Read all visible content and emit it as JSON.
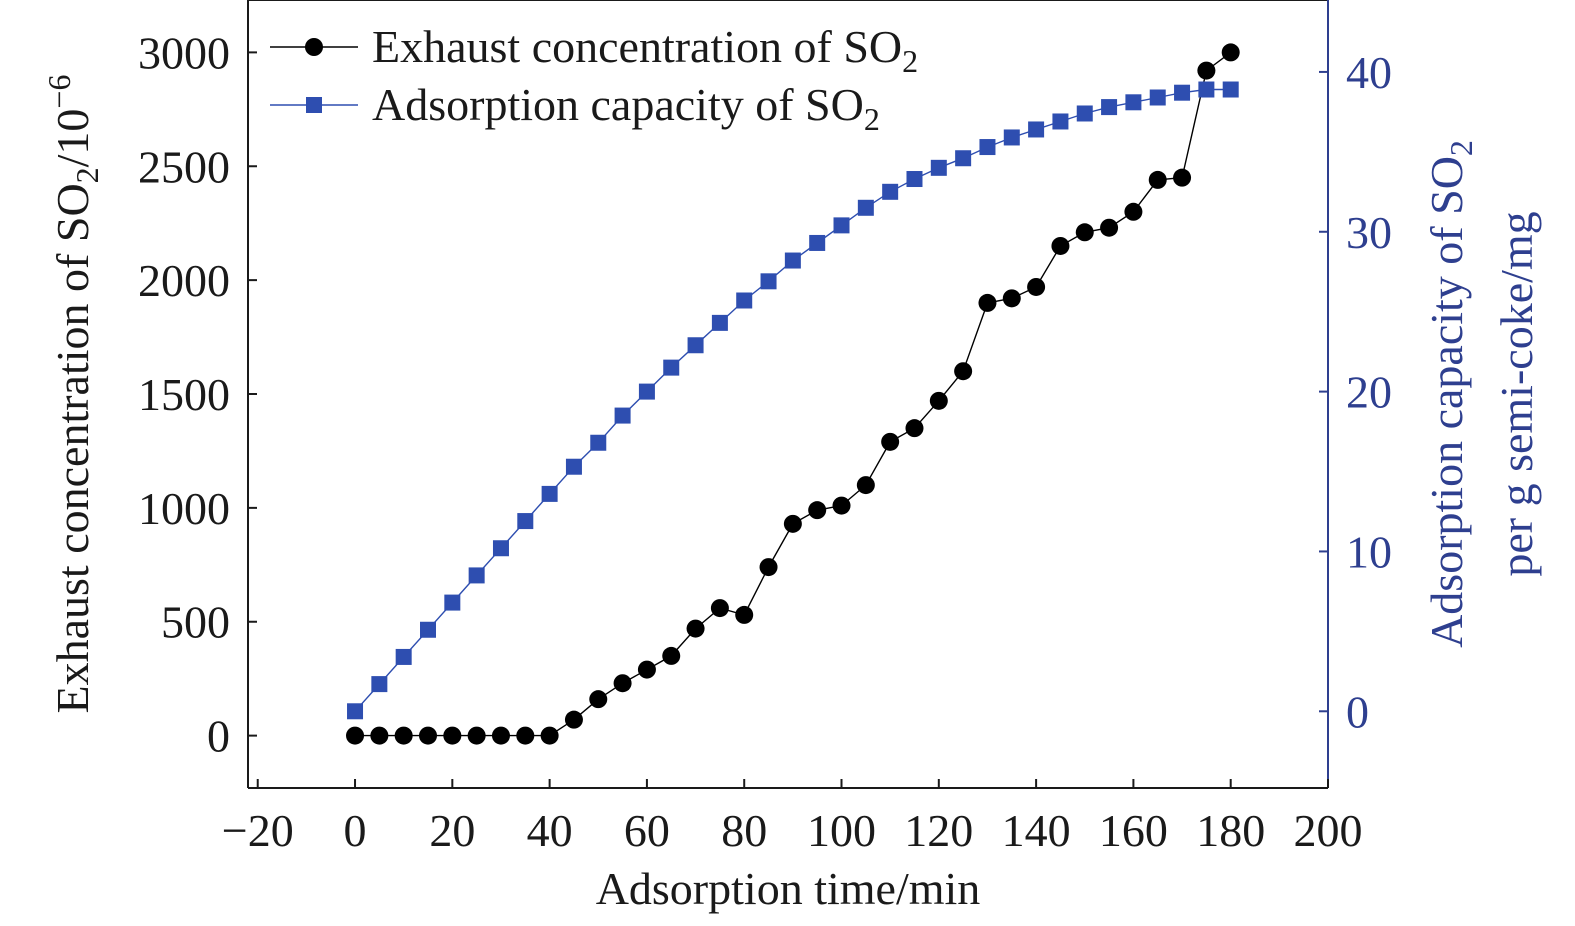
{
  "chart_data": {
    "type": "line",
    "x_axis": {
      "label": "Adsorption time/min",
      "range": [
        -22,
        200
      ],
      "ticks": [
        -20,
        0,
        20,
        40,
        60,
        80,
        100,
        120,
        140,
        160,
        180,
        200
      ],
      "tick_labels": [
        "−20",
        "0",
        "20",
        "40",
        "60",
        "80",
        "100",
        "120",
        "140",
        "160",
        "180",
        "200"
      ]
    },
    "y_axis_left": {
      "label_main": "Exhaust concentration of SO",
      "label_sub": "2",
      "label_tail": "/10",
      "label_sup": "−6",
      "range": [
        -230,
        3230
      ],
      "ticks": [
        0,
        500,
        1000,
        1500,
        2000,
        2500,
        3000
      ],
      "tick_labels": [
        "0",
        "500",
        "1000",
        "1500",
        "2000",
        "2500",
        "3000"
      ],
      "color": "#1a1a1a"
    },
    "y_axis_right": {
      "label_line1_main": "Adsorption capacity of SO",
      "label_line1_sub": "2",
      "label_line2": "per g semi-coke/mg",
      "range": [
        -4.8,
        44.5
      ],
      "ticks": [
        0,
        10,
        20,
        30,
        40
      ],
      "tick_labels": [
        "0",
        "10",
        "20",
        "30",
        "40"
      ],
      "color": "#2e3f8f"
    },
    "series": [
      {
        "name_main": "Exhaust concentration of SO",
        "name_sub": "2",
        "axis": "left",
        "marker": "circle",
        "color": "#000000",
        "x": [
          0,
          5,
          10,
          15,
          20,
          25,
          30,
          35,
          40,
          45,
          50,
          55,
          60,
          65,
          70,
          75,
          80,
          85,
          90,
          95,
          100,
          105,
          110,
          115,
          120,
          125,
          130,
          135,
          140,
          145,
          150,
          155,
          160,
          165,
          170,
          175,
          180
        ],
        "y": [
          0,
          0,
          0,
          0,
          0,
          0,
          0,
          0,
          0,
          70,
          160,
          230,
          290,
          350,
          470,
          560,
          530,
          740,
          930,
          990,
          1010,
          1100,
          1290,
          1350,
          1470,
          1600,
          1900,
          1920,
          1970,
          2150,
          2210,
          2230,
          2300,
          2440,
          2450,
          2920,
          3000
        ]
      },
      {
        "name_main": "Adsorption capacity of SO",
        "name_sub": "2",
        "axis": "right",
        "marker": "square",
        "color": "#2e4eb0",
        "x": [
          0,
          5,
          10,
          15,
          20,
          25,
          30,
          35,
          40,
          45,
          50,
          55,
          60,
          65,
          70,
          75,
          80,
          85,
          90,
          95,
          100,
          105,
          110,
          115,
          120,
          125,
          130,
          135,
          140,
          145,
          150,
          155,
          160,
          165,
          170,
          175,
          180
        ],
        "y": [
          0,
          1.7,
          3.4,
          5.1,
          6.8,
          8.5,
          10.2,
          11.9,
          13.6,
          15.3,
          16.8,
          18.5,
          20.0,
          21.5,
          22.9,
          24.3,
          25.7,
          26.9,
          28.2,
          29.3,
          30.4,
          31.5,
          32.5,
          33.3,
          34.0,
          34.6,
          35.3,
          35.9,
          36.4,
          36.9,
          37.4,
          37.8,
          38.1,
          38.4,
          38.7,
          38.9,
          38.9
        ]
      }
    ],
    "legend": {
      "placement": "top-left"
    },
    "grid": false
  }
}
